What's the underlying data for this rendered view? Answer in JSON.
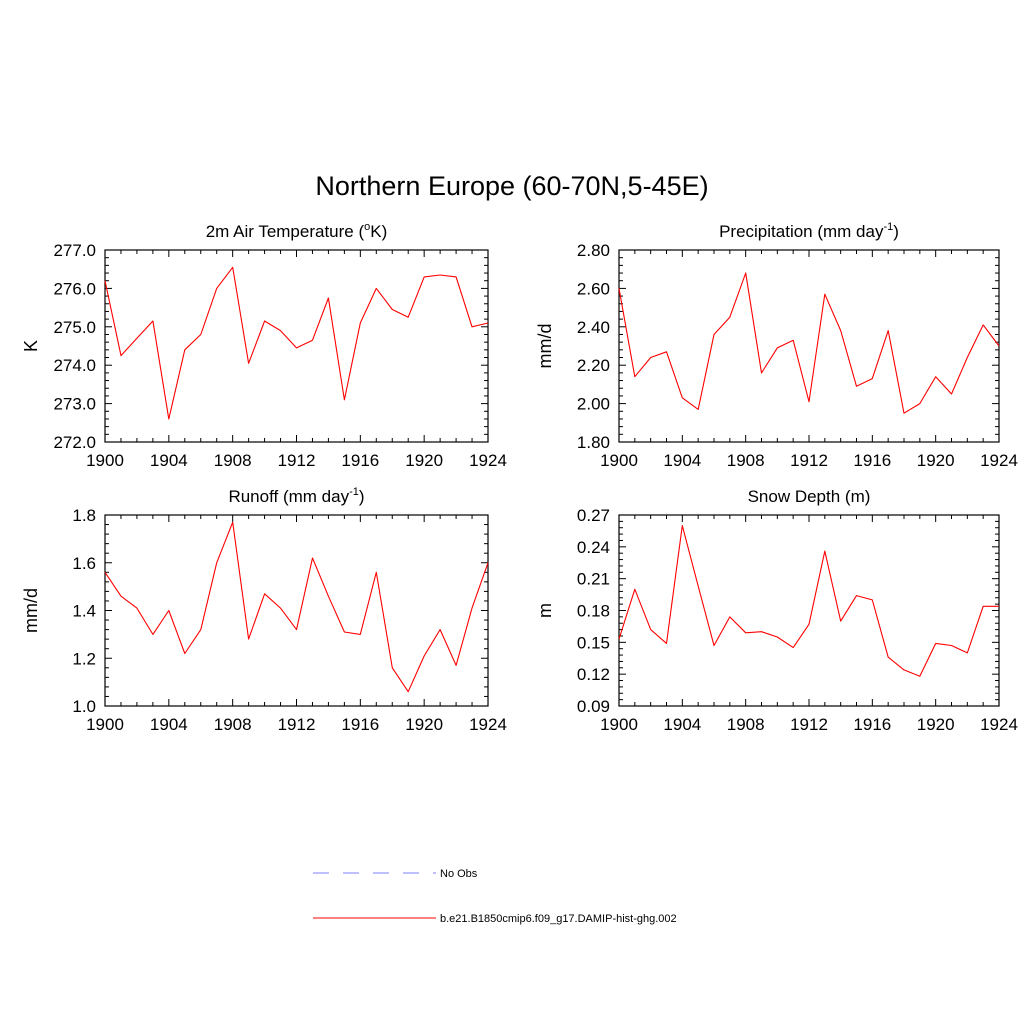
{
  "figure": {
    "title": "Northern Europe (60-70N,5-45E)"
  },
  "legend": {
    "entries": [
      {
        "label": "No Obs",
        "color": "#9999ff",
        "style": "dashed"
      },
      {
        "label": "b.e21.B1850cmip6.f09_g17.DAMIP-hist-ghg.002",
        "color": "#ff0000",
        "style": "solid"
      }
    ]
  },
  "chart_data": [
    {
      "type": "line",
      "title": "2m Air Temperature (oK)",
      "title_main": "2m Air Temperature (",
      "title_sup": "o",
      "title_tail": "K)",
      "xlabel": "",
      "ylabel": "K",
      "xlim": [
        1900,
        1924
      ],
      "ylim": [
        272.0,
        277.0
      ],
      "xticks": [
        1900,
        1904,
        1908,
        1912,
        1916,
        1920,
        1924
      ],
      "yticks": [
        "272.0",
        "273.0",
        "274.0",
        "275.0",
        "276.0",
        "277.0"
      ],
      "grid": false,
      "series": [
        {
          "name": "b.e21.B1850cmip6.f09_g17.DAMIP-hist-ghg.002",
          "color": "#ff0000",
          "x": [
            1900,
            1901,
            1902,
            1903,
            1904,
            1905,
            1906,
            1907,
            1908,
            1909,
            1910,
            1911,
            1912,
            1913,
            1914,
            1915,
            1916,
            1917,
            1918,
            1919,
            1920,
            1921,
            1922,
            1923,
            1924
          ],
          "y": [
            276.2,
            274.25,
            274.7,
            275.15,
            272.6,
            274.4,
            274.8,
            276.0,
            276.55,
            274.05,
            275.15,
            274.9,
            274.45,
            274.65,
            275.75,
            273.1,
            275.1,
            276.0,
            275.45,
            275.25,
            276.3,
            276.35,
            276.3,
            275.0,
            275.1
          ]
        }
      ]
    },
    {
      "type": "line",
      "title": "Precipitation (mm day-1)",
      "title_main": "Precipitation (mm day",
      "title_sup": "-1",
      "title_tail": ")",
      "xlabel": "",
      "ylabel": "mm/d",
      "xlim": [
        1900,
        1924
      ],
      "ylim": [
        1.8,
        2.8
      ],
      "xticks": [
        1900,
        1904,
        1908,
        1912,
        1916,
        1920,
        1924
      ],
      "yticks": [
        "1.80",
        "2.00",
        "2.20",
        "2.40",
        "2.60",
        "2.80"
      ],
      "grid": false,
      "series": [
        {
          "name": "b.e21.B1850cmip6.f09_g17.DAMIP-hist-ghg.002",
          "color": "#ff0000",
          "x": [
            1900,
            1901,
            1902,
            1903,
            1904,
            1905,
            1906,
            1907,
            1908,
            1909,
            1910,
            1911,
            1912,
            1913,
            1914,
            1915,
            1916,
            1917,
            1918,
            1919,
            1920,
            1921,
            1922,
            1923,
            1924
          ],
          "y": [
            2.6,
            2.14,
            2.24,
            2.27,
            2.03,
            1.97,
            2.36,
            2.45,
            2.68,
            2.16,
            2.29,
            2.33,
            2.01,
            2.57,
            2.38,
            2.09,
            2.13,
            2.38,
            1.95,
            2.0,
            2.14,
            2.05,
            2.24,
            2.41,
            2.3
          ]
        }
      ]
    },
    {
      "type": "line",
      "title": "Runoff (mm day-1)",
      "title_main": "Runoff (mm day",
      "title_sup": "-1",
      "title_tail": ")",
      "xlabel": "",
      "ylabel": "mm/d",
      "xlim": [
        1900,
        1924
      ],
      "ylim": [
        1.0,
        1.8
      ],
      "xticks": [
        1900,
        1904,
        1908,
        1912,
        1916,
        1920,
        1924
      ],
      "yticks": [
        "1.0",
        "1.2",
        "1.4",
        "1.6",
        "1.8"
      ],
      "grid": false,
      "series": [
        {
          "name": "b.e21.B1850cmip6.f09_g17.DAMIP-hist-ghg.002",
          "color": "#ff0000",
          "x": [
            1900,
            1901,
            1902,
            1903,
            1904,
            1905,
            1906,
            1907,
            1908,
            1909,
            1910,
            1911,
            1912,
            1913,
            1914,
            1915,
            1916,
            1917,
            1918,
            1919,
            1920,
            1921,
            1922,
            1923,
            1924
          ],
          "y": [
            1.56,
            1.46,
            1.41,
            1.3,
            1.4,
            1.22,
            1.32,
            1.6,
            1.77,
            1.28,
            1.47,
            1.41,
            1.32,
            1.62,
            1.46,
            1.31,
            1.3,
            1.56,
            1.16,
            1.06,
            1.21,
            1.32,
            1.17,
            1.41,
            1.6
          ]
        }
      ]
    },
    {
      "type": "line",
      "title": "Snow Depth (m)",
      "title_main": "Snow Depth (m)",
      "title_sup": "",
      "title_tail": "",
      "xlabel": "",
      "ylabel": "m",
      "xlim": [
        1900,
        1924
      ],
      "ylim": [
        0.09,
        0.27
      ],
      "xticks": [
        1900,
        1904,
        1908,
        1912,
        1916,
        1920,
        1924
      ],
      "yticks": [
        "0.09",
        "0.12",
        "0.15",
        "0.18",
        "0.21",
        "0.24",
        "0.27"
      ],
      "grid": false,
      "series": [
        {
          "name": "b.e21.B1850cmip6.f09_g17.DAMIP-hist-ghg.002",
          "color": "#ff0000",
          "x": [
            1900,
            1901,
            1902,
            1903,
            1904,
            1905,
            1906,
            1907,
            1908,
            1909,
            1910,
            1911,
            1912,
            1913,
            1914,
            1915,
            1916,
            1917,
            1918,
            1919,
            1920,
            1921,
            1922,
            1923,
            1924
          ],
          "y": [
            0.153,
            0.2,
            0.162,
            0.149,
            0.26,
            0.203,
            0.147,
            0.174,
            0.159,
            0.16,
            0.155,
            0.145,
            0.167,
            0.236,
            0.17,
            0.194,
            0.19,
            0.136,
            0.124,
            0.118,
            0.149,
            0.147,
            0.14,
            0.184,
            0.184
          ]
        }
      ]
    }
  ]
}
